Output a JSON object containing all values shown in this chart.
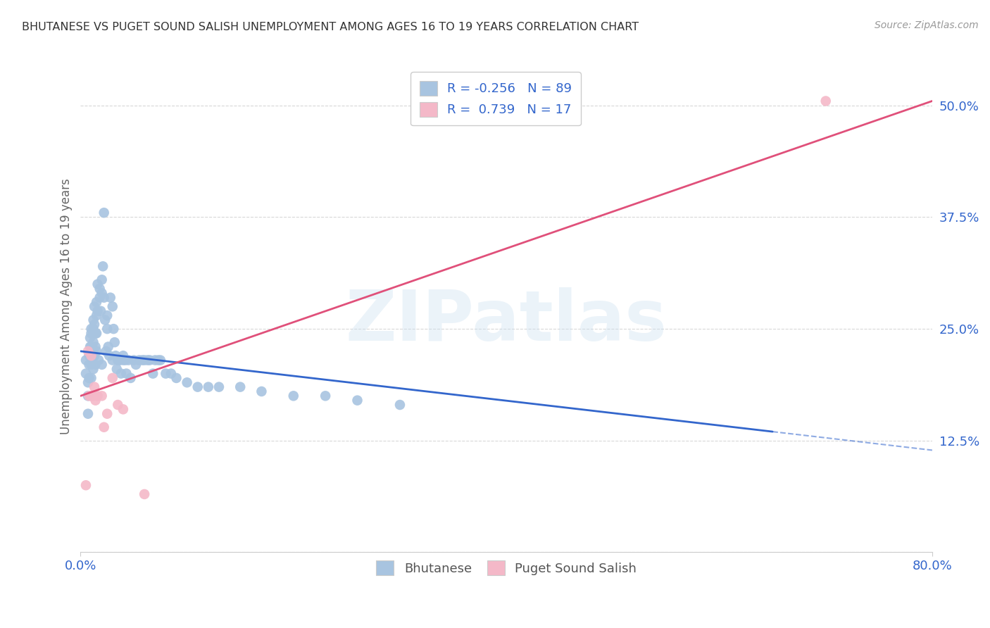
{
  "title": "BHUTANESE VS PUGET SOUND SALISH UNEMPLOYMENT AMONG AGES 16 TO 19 YEARS CORRELATION CHART",
  "source": "Source: ZipAtlas.com",
  "ylabel": "Unemployment Among Ages 16 to 19 years",
  "xlim": [
    0.0,
    0.8
  ],
  "ylim": [
    0.0,
    0.55
  ],
  "blue_color": "#a8c4e0",
  "pink_color": "#f4b8c8",
  "blue_line_color": "#3366cc",
  "pink_line_color": "#e0507a",
  "blue_R": -0.256,
  "blue_N": 89,
  "pink_R": 0.739,
  "pink_N": 17,
  "blue_scatter_x": [
    0.005,
    0.005,
    0.007,
    0.007,
    0.007,
    0.008,
    0.008,
    0.008,
    0.009,
    0.009,
    0.01,
    0.01,
    0.01,
    0.01,
    0.01,
    0.01,
    0.012,
    0.012,
    0.012,
    0.012,
    0.013,
    0.013,
    0.013,
    0.014,
    0.014,
    0.014,
    0.015,
    0.015,
    0.015,
    0.015,
    0.016,
    0.016,
    0.017,
    0.018,
    0.018,
    0.019,
    0.02,
    0.02,
    0.02,
    0.021,
    0.022,
    0.022,
    0.023,
    0.024,
    0.025,
    0.025,
    0.026,
    0.027,
    0.028,
    0.03,
    0.03,
    0.031,
    0.032,
    0.033,
    0.034,
    0.035,
    0.036,
    0.037,
    0.038,
    0.04,
    0.04,
    0.042,
    0.043,
    0.045,
    0.047,
    0.05,
    0.052,
    0.055,
    0.058,
    0.06,
    0.063,
    0.065,
    0.068,
    0.07,
    0.073,
    0.075,
    0.08,
    0.085,
    0.09,
    0.1,
    0.11,
    0.12,
    0.13,
    0.15,
    0.17,
    0.2,
    0.23,
    0.26,
    0.3
  ],
  "blue_scatter_y": [
    0.2,
    0.215,
    0.19,
    0.175,
    0.155,
    0.22,
    0.21,
    0.195,
    0.24,
    0.23,
    0.25,
    0.245,
    0.23,
    0.22,
    0.21,
    0.195,
    0.26,
    0.25,
    0.235,
    0.205,
    0.275,
    0.255,
    0.22,
    0.245,
    0.23,
    0.21,
    0.28,
    0.265,
    0.245,
    0.225,
    0.3,
    0.27,
    0.215,
    0.295,
    0.285,
    0.27,
    0.305,
    0.29,
    0.21,
    0.32,
    0.38,
    0.285,
    0.26,
    0.225,
    0.265,
    0.25,
    0.23,
    0.22,
    0.285,
    0.275,
    0.215,
    0.25,
    0.235,
    0.22,
    0.205,
    0.215,
    0.215,
    0.215,
    0.2,
    0.22,
    0.215,
    0.215,
    0.2,
    0.215,
    0.195,
    0.215,
    0.21,
    0.215,
    0.215,
    0.215,
    0.215,
    0.215,
    0.2,
    0.215,
    0.215,
    0.215,
    0.2,
    0.2,
    0.195,
    0.19,
    0.185,
    0.185,
    0.185,
    0.185,
    0.18,
    0.175,
    0.175,
    0.17,
    0.165
  ],
  "pink_scatter_x": [
    0.005,
    0.007,
    0.008,
    0.01,
    0.01,
    0.012,
    0.013,
    0.014,
    0.016,
    0.02,
    0.022,
    0.025,
    0.03,
    0.035,
    0.04,
    0.06,
    0.7
  ],
  "pink_scatter_y": [
    0.075,
    0.225,
    0.175,
    0.22,
    0.175,
    0.175,
    0.185,
    0.17,
    0.175,
    0.175,
    0.14,
    0.155,
    0.195,
    0.165,
    0.16,
    0.065,
    0.505
  ],
  "blue_line_x0": 0.0,
  "blue_line_x1": 0.65,
  "blue_line_x2": 0.8,
  "blue_line_y0": 0.225,
  "blue_line_y1": 0.135,
  "pink_line_x0": 0.0,
  "pink_line_x1": 0.8,
  "pink_line_y0": 0.175,
  "pink_line_y1": 0.505,
  "watermark": "ZIPatlas",
  "background_color": "#ffffff",
  "grid_color": "#d8d8d8"
}
